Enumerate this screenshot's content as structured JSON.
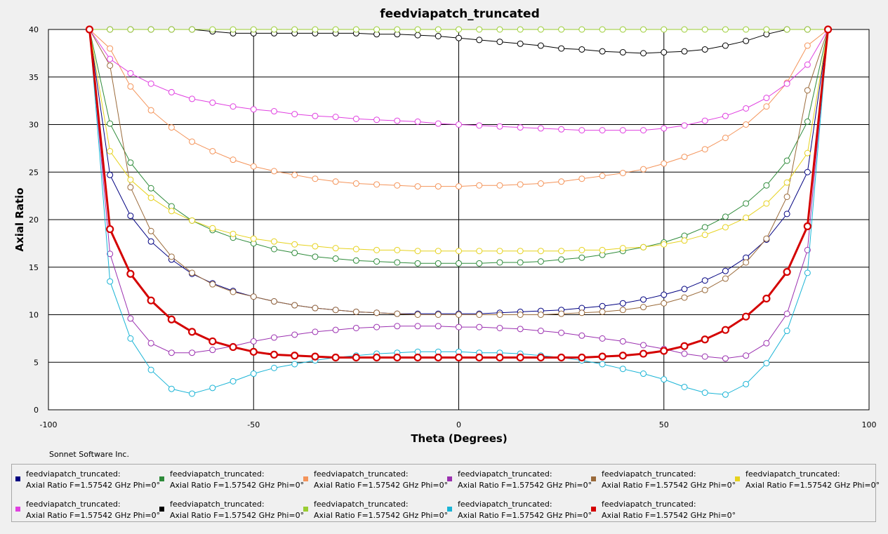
{
  "credit": "Sonnet Software Inc.",
  "chart_data": {
    "type": "line",
    "title": "feedviapatch_truncated",
    "xlabel": "Theta (Degrees)",
    "ylabel": "Axial Ratio",
    "xlim": [
      -100,
      100
    ],
    "ylim": [
      0,
      40
    ],
    "xticks": [
      "-100",
      "-50",
      "0",
      "50",
      "100"
    ],
    "yticks": [
      "0",
      "5",
      "10",
      "15",
      "20",
      "25",
      "30",
      "35",
      "40"
    ],
    "grid": true,
    "legend_position": "bottom",
    "x": [
      -90,
      -85,
      -80,
      -75,
      -70,
      -65,
      -60,
      -55,
      -50,
      -45,
      -40,
      -35,
      -30,
      -25,
      -20,
      -15,
      -10,
      -5,
      0,
      5,
      10,
      15,
      20,
      25,
      30,
      35,
      40,
      45,
      50,
      55,
      60,
      65,
      70,
      75,
      80,
      85,
      90
    ],
    "series": [
      {
        "legend_line1": "feedviapatch_truncated:",
        "legend_line2": "Axial Ratio  F=1.57542 GHz  Phi=0°",
        "color": "#000080",
        "values": [
          40,
          24.7,
          20.4,
          17.7,
          15.8,
          14.3,
          13.3,
          12.5,
          11.9,
          11.4,
          11.0,
          10.7,
          10.5,
          10.3,
          10.2,
          10.1,
          10.1,
          10.1,
          10.1,
          10.1,
          10.2,
          10.3,
          10.4,
          10.5,
          10.7,
          10.9,
          11.2,
          11.6,
          12.1,
          12.7,
          13.6,
          14.6,
          16.0,
          17.9,
          20.6,
          25.0,
          40
        ]
      },
      {
        "legend_line1": "feedviapatch_truncated:",
        "legend_line2": "Axial Ratio  F=1.57542 GHz  Phi=0°",
        "color": "#2e8b3a",
        "values": [
          40,
          30.1,
          26.0,
          23.3,
          21.4,
          19.9,
          18.9,
          18.1,
          17.5,
          16.9,
          16.5,
          16.1,
          15.9,
          15.7,
          15.6,
          15.5,
          15.4,
          15.4,
          15.4,
          15.4,
          15.5,
          15.5,
          15.6,
          15.8,
          16.0,
          16.3,
          16.7,
          17.1,
          17.6,
          18.3,
          19.2,
          20.3,
          21.7,
          23.6,
          26.2,
          30.3,
          40
        ]
      },
      {
        "legend_line1": "feedviapatch_truncated:",
        "legend_line2": "Axial Ratio  F=1.57542 GHz  Phi=0°",
        "color": "#f4945a",
        "values": [
          40,
          38.0,
          34.0,
          31.5,
          29.7,
          28.2,
          27.2,
          26.3,
          25.6,
          25.1,
          24.7,
          24.3,
          24.0,
          23.8,
          23.7,
          23.6,
          23.5,
          23.5,
          23.5,
          23.6,
          23.6,
          23.7,
          23.8,
          24.0,
          24.3,
          24.6,
          24.9,
          25.3,
          25.9,
          26.6,
          27.4,
          28.6,
          30.0,
          31.9,
          34.4,
          38.3,
          40
        ]
      },
      {
        "legend_line1": "feedviapatch_truncated:",
        "legend_line2": "Axial Ratio  F=1.57542 GHz  Phi=0°",
        "color": "#9b30b0",
        "values": [
          40,
          16.4,
          9.6,
          7.0,
          6.0,
          6.0,
          6.3,
          6.7,
          7.2,
          7.6,
          7.9,
          8.2,
          8.4,
          8.6,
          8.7,
          8.8,
          8.8,
          8.8,
          8.7,
          8.7,
          8.6,
          8.5,
          8.3,
          8.1,
          7.8,
          7.5,
          7.2,
          6.8,
          6.4,
          5.9,
          5.6,
          5.4,
          5.7,
          7.0,
          10.1,
          16.8,
          40
        ]
      },
      {
        "legend_line1": "feedviapatch_truncated:",
        "legend_line2": "Axial Ratio  F=1.57542 GHz  Phi=0°",
        "color": "#9a6a3a",
        "values": [
          40,
          36.2,
          23.4,
          18.8,
          16.1,
          14.4,
          13.2,
          12.4,
          11.9,
          11.4,
          11.0,
          10.7,
          10.5,
          10.3,
          10.2,
          10.1,
          10.0,
          10.0,
          10.0,
          10.0,
          10.0,
          10.0,
          10.0,
          10.1,
          10.2,
          10.3,
          10.5,
          10.8,
          11.2,
          11.8,
          12.6,
          13.8,
          15.5,
          18.0,
          22.4,
          33.6,
          40
        ]
      },
      {
        "legend_line1": "feedviapatch_truncated:",
        "legend_line2": "Axial Ratio  F=1.57542 GHz  Phi=0°",
        "color": "#e6d21e",
        "values": [
          40,
          27.2,
          24.2,
          22.3,
          20.9,
          19.9,
          19.1,
          18.5,
          18.0,
          17.7,
          17.4,
          17.2,
          17.0,
          16.9,
          16.8,
          16.8,
          16.7,
          16.7,
          16.7,
          16.7,
          16.7,
          16.7,
          16.7,
          16.7,
          16.8,
          16.8,
          17.0,
          17.1,
          17.4,
          17.8,
          18.4,
          19.2,
          20.2,
          21.7,
          23.9,
          27.0,
          40
        ]
      },
      {
        "legend_line1": "feedviapatch_truncated:",
        "legend_line2": "Axial Ratio  F=1.57542 GHz  Phi=0°",
        "color": "#e040e0",
        "values": [
          40,
          36.9,
          35.4,
          34.3,
          33.4,
          32.7,
          32.3,
          31.9,
          31.6,
          31.4,
          31.1,
          30.9,
          30.8,
          30.6,
          30.5,
          30.4,
          30.3,
          30.1,
          30.0,
          29.9,
          29.8,
          29.7,
          29.6,
          29.5,
          29.4,
          29.4,
          29.4,
          29.4,
          29.6,
          29.9,
          30.4,
          30.9,
          31.7,
          32.8,
          34.3,
          36.3,
          40
        ]
      },
      {
        "legend_line1": "feedviapatch_truncated:",
        "legend_line2": "Axial Ratio  F=1.57542 GHz  Phi=0°",
        "color": "#000000",
        "values": [
          40,
          40,
          40,
          40,
          40,
          40,
          39.8,
          39.6,
          39.6,
          39.6,
          39.6,
          39.6,
          39.6,
          39.6,
          39.5,
          39.5,
          39.4,
          39.3,
          39.1,
          38.9,
          38.7,
          38.5,
          38.3,
          38.0,
          37.9,
          37.7,
          37.6,
          37.5,
          37.6,
          37.7,
          37.9,
          38.3,
          38.8,
          39.5,
          40,
          40,
          40
        ]
      },
      {
        "legend_line1": "feedviapatch_truncated:",
        "legend_line2": "Axial Ratio  F=1.57542 GHz  Phi=0°",
        "color": "#9acd32",
        "values": [
          40,
          40,
          40,
          40,
          40,
          40,
          40,
          40,
          40,
          40,
          40,
          40,
          40,
          40,
          40,
          40,
          40,
          40,
          40,
          40,
          40,
          40,
          40,
          40,
          40,
          40,
          40,
          40,
          40,
          40,
          40,
          40,
          40,
          40,
          40,
          40,
          40
        ]
      },
      {
        "legend_line1": "feedviapatch_truncated:",
        "legend_line2": "Axial Ratio  F=1.57542 GHz  Phi=0°",
        "color": "#1ab4d6",
        "values": [
          40,
          13.5,
          7.5,
          4.2,
          2.2,
          1.7,
          2.3,
          3.0,
          3.8,
          4.4,
          4.8,
          5.2,
          5.5,
          5.7,
          5.9,
          6.0,
          6.1,
          6.1,
          6.1,
          6.0,
          6.0,
          5.9,
          5.7,
          5.5,
          5.2,
          4.8,
          4.3,
          3.8,
          3.2,
          2.4,
          1.8,
          1.6,
          2.7,
          4.9,
          8.3,
          14.4,
          40
        ]
      },
      {
        "legend_line1": "feedviapatch_truncated:",
        "legend_line2": "Axial Ratio  F=1.57542 GHz  Phi=0°",
        "color": "#d40000",
        "bold": true,
        "values": [
          40,
          19.0,
          14.3,
          11.5,
          9.5,
          8.2,
          7.2,
          6.6,
          6.1,
          5.8,
          5.7,
          5.6,
          5.5,
          5.5,
          5.5,
          5.5,
          5.5,
          5.5,
          5.5,
          5.5,
          5.5,
          5.5,
          5.5,
          5.5,
          5.5,
          5.6,
          5.7,
          5.9,
          6.2,
          6.7,
          7.4,
          8.4,
          9.8,
          11.7,
          14.5,
          19.3,
          40
        ]
      }
    ]
  }
}
